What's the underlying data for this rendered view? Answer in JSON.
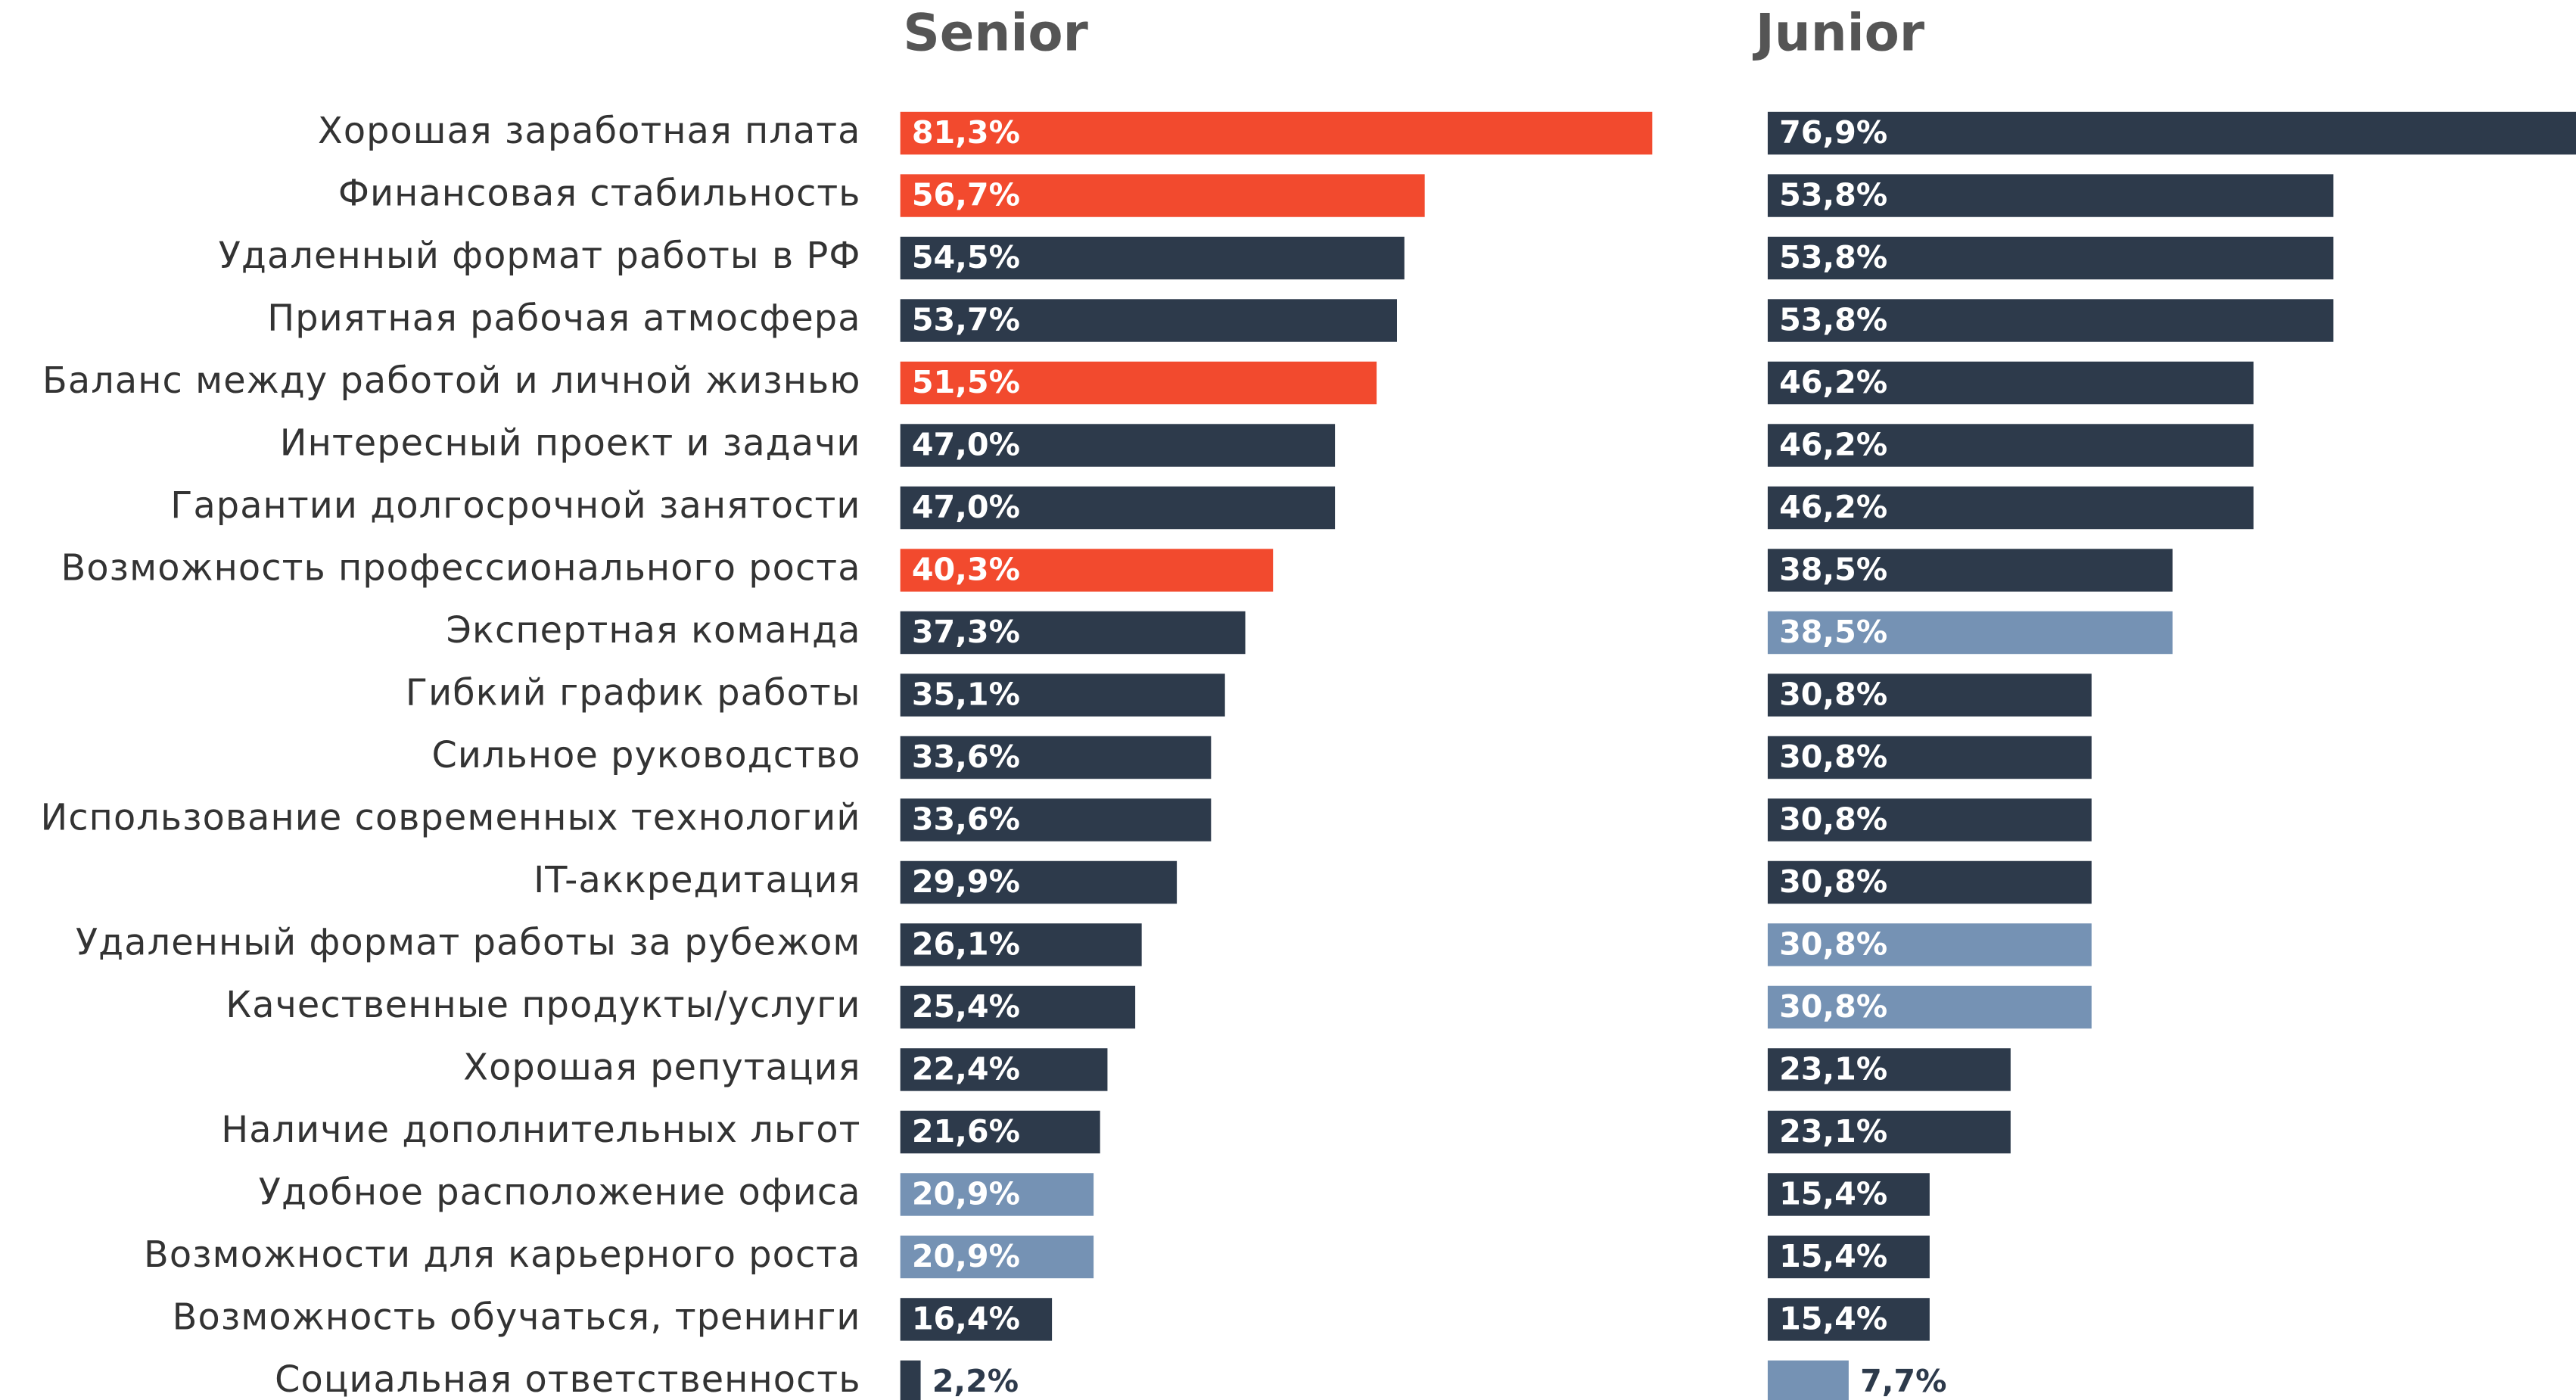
{
  "chart_data": {
    "type": "bar",
    "orientation": "horizontal",
    "categories": [
      "Хорошая заработная плата",
      "Финансовая стабильность",
      "Удаленный формат работы в РФ",
      "Приятная рабочая атмосфера",
      "Баланс между работой и личной жизнью",
      "Интересный проект и задачи",
      "Гарантии долгосрочной занятости",
      "Возможность профессионального роста",
      "Экспертная команда",
      "Гибкий график работы",
      "Сильное руководство",
      "Использование современных технологий",
      "IT-аккредитация",
      "Удаленный формат работы за рубежом",
      "Качественные продукты/услуги",
      "Хорошая репутация",
      "Наличие дополнительных  льгот",
      "Удобное расположение офиса",
      "Возможности для карьерного роста",
      "Возможность обучаться, тренинги",
      "Социальная ответственность"
    ],
    "series": [
      {
        "name": "Senior",
        "values": [
          81.3,
          56.7,
          54.5,
          53.7,
          51.5,
          47.0,
          47.0,
          40.3,
          37.3,
          35.1,
          33.6,
          33.6,
          29.9,
          26.1,
          25.4,
          22.4,
          21.6,
          20.9,
          20.9,
          16.4,
          2.2
        ],
        "value_labels": [
          "81,3%",
          "56,7%",
          "54,5%",
          "53,7%",
          "51,5%",
          "47,0%",
          "47,0%",
          "40,3%",
          "37,3%",
          "35,1%",
          "33,6%",
          "33,6%",
          "29,9%",
          "26,1%",
          "25,4%",
          "22,4%",
          "21,6%",
          "20,9%",
          "20,9%",
          "16,4%",
          "2,2%"
        ],
        "colors": [
          "#f24a2e",
          "#f24a2e",
          "#2d3a4b",
          "#2d3a4b",
          "#f24a2e",
          "#2d3a4b",
          "#2d3a4b",
          "#f24a2e",
          "#2d3a4b",
          "#2d3a4b",
          "#2d3a4b",
          "#2d3a4b",
          "#2d3a4b",
          "#2d3a4b",
          "#2d3a4b",
          "#2d3a4b",
          "#2d3a4b",
          "#7592b4",
          "#7592b4",
          "#2d3a4b",
          "#2d3a4b"
        ]
      },
      {
        "name": "Junior",
        "values": [
          76.9,
          53.8,
          53.8,
          53.8,
          46.2,
          46.2,
          46.2,
          38.5,
          38.5,
          30.8,
          30.8,
          30.8,
          30.8,
          30.8,
          30.8,
          23.1,
          23.1,
          15.4,
          15.4,
          15.4,
          7.7
        ],
        "value_labels": [
          "76,9%",
          "53,8%",
          "53,8%",
          "53,8%",
          "46,2%",
          "46,2%",
          "46,2%",
          "38,5%",
          "38,5%",
          "30,8%",
          "30,8%",
          "30,8%",
          "30,8%",
          "30,8%",
          "30,8%",
          "23,1%",
          "23,1%",
          "15,4%",
          "15,4%",
          "15,4%",
          "7,7%"
        ],
        "colors": [
          "#2d3a4b",
          "#2d3a4b",
          "#2d3a4b",
          "#2d3a4b",
          "#2d3a4b",
          "#2d3a4b",
          "#2d3a4b",
          "#2d3a4b",
          "#7592b4",
          "#2d3a4b",
          "#2d3a4b",
          "#2d3a4b",
          "#2d3a4b",
          "#7592b4",
          "#7592b4",
          "#2d3a4b",
          "#2d3a4b",
          "#2d3a4b",
          "#2d3a4b",
          "#2d3a4b",
          "#7592b4"
        ]
      }
    ]
  }
}
